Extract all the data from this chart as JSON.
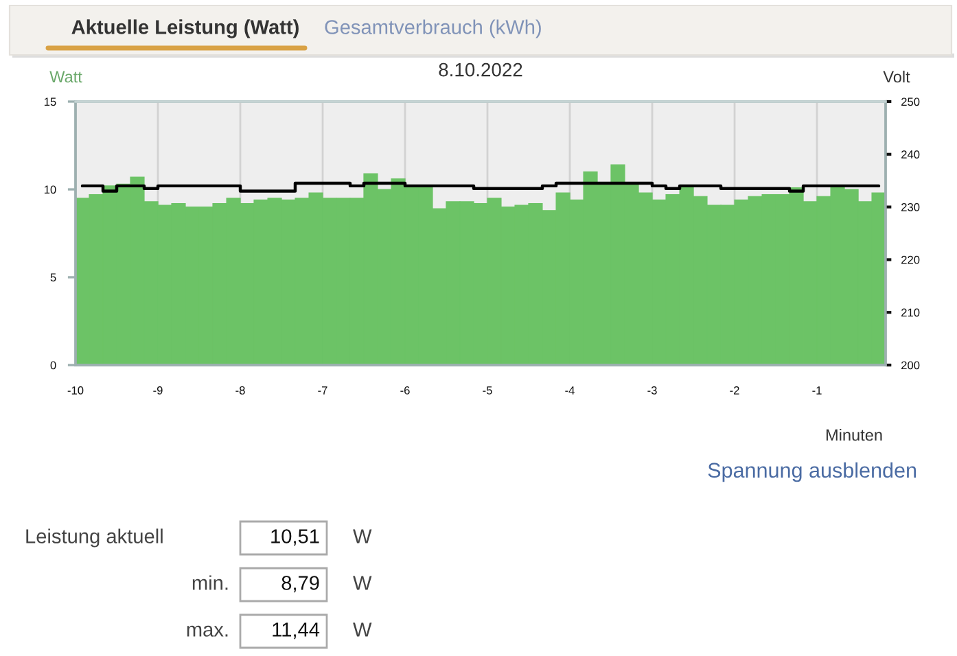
{
  "chart_data": {
    "type": "bar",
    "title": "8.10.2022",
    "xlabel": "Minuten",
    "ylabel": "Watt",
    "y2label": "Volt",
    "annotations": [
      "Aktuelle Leistung (Watt)",
      "Gesamtverbrauch (kWh)",
      "Spannung ausblenden",
      "Leistung aktuell",
      "10,51",
      "W",
      "min.",
      "8,79",
      "W",
      "max.",
      "11,44",
      "W"
    ],
    "x": [
      -9.917,
      -9.75,
      -9.583,
      -9.417,
      -9.25,
      -9.083,
      -8.917,
      -8.75,
      -8.583,
      -8.417,
      -8.25,
      -8.083,
      -7.917,
      -7.75,
      -7.583,
      -7.417,
      -7.25,
      -7.083,
      -6.917,
      -6.75,
      -6.583,
      -6.417,
      -6.25,
      -6.083,
      -5.917,
      -5.75,
      -5.583,
      -5.417,
      -5.25,
      -5.083,
      -4.917,
      -4.75,
      -4.583,
      -4.417,
      -4.25,
      -4.083,
      -3.917,
      -3.75,
      -3.583,
      -3.417,
      -3.25,
      -3.083,
      -2.917,
      -2.75,
      -2.583,
      -2.417,
      -2.25,
      -2.083,
      -1.917,
      -1.75,
      -1.583,
      -1.417,
      -1.25,
      -1.083,
      -0.917,
      -0.75,
      -0.583,
      -0.417,
      -0.25
    ],
    "series": [
      {
        "color": "#6cc366",
        "values": [
          9.5,
          9.7,
          10.2,
          10.3,
          10.7,
          9.3,
          9.1,
          9.2,
          9.0,
          9.0,
          9.2,
          9.5,
          9.2,
          9.4,
          9.5,
          9.4,
          9.5,
          9.8,
          9.5,
          9.5,
          9.5,
          10.9,
          10.0,
          10.6,
          10.2,
          10.1,
          8.9,
          9.3,
          9.3,
          9.2,
          9.5,
          9.0,
          9.1,
          9.2,
          8.8,
          9.8,
          9.4,
          11.0,
          10.3,
          11.4,
          10.3,
          9.8,
          9.4,
          9.7,
          10.1,
          9.6,
          9.1,
          9.1,
          9.4,
          9.6,
          9.7,
          9.7,
          10.1,
          9.3,
          9.6,
          10.2,
          10.0,
          9.3,
          9.8
        ]
      },
      {
        "type": "step",
        "axis": "y2",
        "color": "#000000",
        "values": [
          234,
          234,
          233,
          234,
          234,
          233.5,
          234,
          234,
          234,
          234,
          234,
          234,
          233,
          233,
          233,
          233,
          234.5,
          234.5,
          234.5,
          234.5,
          234,
          234.5,
          234.5,
          234.5,
          234,
          234,
          234,
          234,
          234,
          233.5,
          233.5,
          233.5,
          233.5,
          233.5,
          234,
          234.5,
          234.5,
          234.5,
          234.5,
          234.5,
          234.5,
          234.5,
          234,
          233.5,
          234,
          234,
          234,
          233.5,
          233.5,
          233.5,
          233.5,
          233.5,
          233,
          234,
          234,
          234,
          234,
          234,
          234
        ]
      }
    ],
    "xlim": [
      -10,
      -0.167
    ],
    "xticks": [
      -10,
      -9,
      -8,
      -7,
      -6,
      -5,
      -4,
      -3,
      -2,
      -1
    ],
    "ylim": [
      0,
      15
    ],
    "yticks": [
      0,
      5,
      10,
      15
    ],
    "y2lim": [
      200,
      250
    ],
    "y2ticks": [
      200,
      210,
      220,
      230,
      240,
      250
    ],
    "grid": "x"
  }
}
